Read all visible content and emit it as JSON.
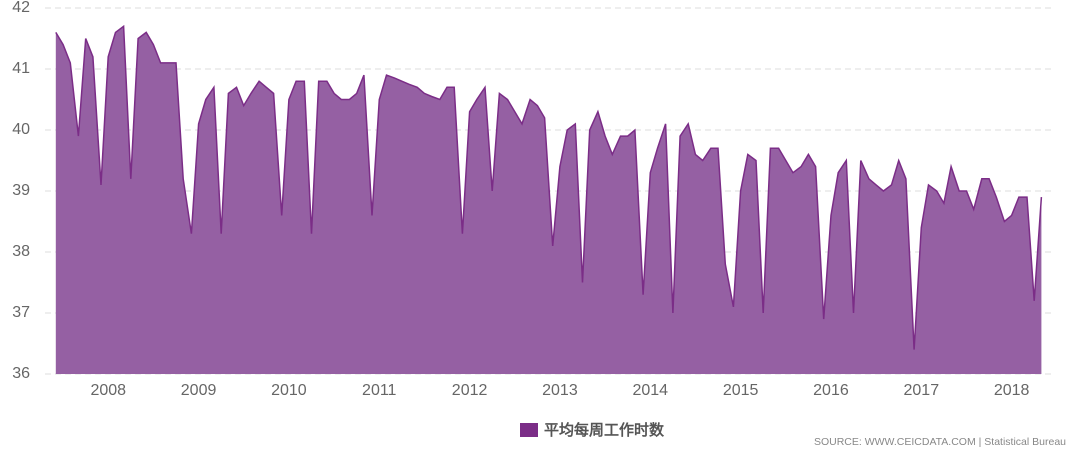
{
  "chart_data": {
    "type": "area",
    "x": [
      2007.42,
      2007.5,
      2007.58,
      2007.67,
      2007.75,
      2007.83,
      2007.92,
      2008.0,
      2008.08,
      2008.17,
      2008.25,
      2008.33,
      2008.42,
      2008.5,
      2008.58,
      2008.67,
      2008.75,
      2008.83,
      2008.92,
      2009.0,
      2009.08,
      2009.17,
      2009.25,
      2009.33,
      2009.42,
      2009.5,
      2009.58,
      2009.67,
      2009.75,
      2009.83,
      2009.92,
      2010.0,
      2010.08,
      2010.17,
      2010.25,
      2010.33,
      2010.42,
      2010.5,
      2010.58,
      2010.67,
      2010.75,
      2010.83,
      2010.92,
      2011.0,
      2011.08,
      2011.17,
      2011.25,
      2011.33,
      2011.42,
      2011.5,
      2011.58,
      2011.67,
      2011.75,
      2011.83,
      2011.92,
      2012.0,
      2012.08,
      2012.17,
      2012.25,
      2012.33,
      2012.42,
      2012.5,
      2012.58,
      2012.67,
      2012.75,
      2012.83,
      2012.92,
      2013.0,
      2013.08,
      2013.17,
      2013.25,
      2013.33,
      2013.42,
      2013.5,
      2013.58,
      2013.67,
      2013.75,
      2013.83,
      2013.92,
      2014.0,
      2014.08,
      2014.17,
      2014.25,
      2014.33,
      2014.42,
      2014.5,
      2014.58,
      2014.67,
      2014.75,
      2014.83,
      2014.92,
      2015.0,
      2015.08,
      2015.17,
      2015.25,
      2015.33,
      2015.42,
      2015.5,
      2015.58,
      2015.67,
      2015.75,
      2015.83,
      2015.92,
      2016.0,
      2016.08,
      2016.17,
      2016.25,
      2016.33,
      2016.42,
      2016.5,
      2016.58,
      2016.67,
      2016.75,
      2016.83,
      2016.92,
      2017.0,
      2017.08,
      2017.17,
      2017.25,
      2017.33,
      2017.42,
      2017.5,
      2017.58,
      2017.67,
      2017.75,
      2017.83,
      2017.92,
      2018.0,
      2018.08,
      2018.17,
      2018.25,
      2018.33
    ],
    "series": [
      {
        "name": "平均每周工作时数",
        "color": "#7b2d87",
        "fill": "#9560a3",
        "values": [
          41.6,
          41.4,
          41.1,
          39.9,
          41.5,
          41.2,
          39.1,
          41.2,
          41.6,
          41.7,
          39.2,
          41.5,
          41.6,
          41.4,
          41.1,
          41.1,
          41.1,
          39.2,
          38.3,
          40.1,
          40.5,
          40.7,
          38.3,
          40.6,
          40.7,
          40.4,
          40.6,
          40.8,
          40.7,
          40.6,
          38.6,
          40.5,
          40.8,
          40.8,
          38.3,
          40.8,
          40.8,
          40.6,
          40.5,
          40.5,
          40.6,
          40.9,
          38.6,
          40.5,
          40.9,
          40.85,
          40.8,
          40.75,
          40.7,
          40.6,
          40.55,
          40.5,
          40.7,
          40.7,
          38.3,
          40.3,
          40.5,
          40.7,
          39.0,
          40.6,
          40.5,
          40.3,
          40.1,
          40.5,
          40.4,
          40.2,
          38.1,
          39.4,
          40.0,
          40.1,
          37.5,
          40.0,
          40.3,
          39.9,
          39.6,
          39.9,
          39.9,
          40.0,
          37.3,
          39.3,
          39.7,
          40.1,
          37.0,
          39.9,
          40.1,
          39.6,
          39.5,
          39.7,
          39.7,
          37.8,
          37.1,
          39.0,
          39.6,
          39.5,
          37.0,
          39.7,
          39.7,
          39.5,
          39.3,
          39.4,
          39.6,
          39.4,
          36.9,
          38.6,
          39.3,
          39.5,
          37.0,
          39.5,
          39.2,
          39.1,
          39.0,
          39.1,
          39.5,
          39.2,
          36.4,
          38.4,
          39.1,
          39.0,
          38.8,
          39.4,
          39.0,
          39.0,
          38.7,
          39.2,
          39.2,
          38.9,
          38.5,
          38.6,
          38.9,
          38.9,
          37.2,
          38.9
        ]
      }
    ],
    "xlim": [
      2007.3,
      2018.48
    ],
    "xticks": [
      {
        "value": 2008,
        "label": "2008"
      },
      {
        "value": 2009,
        "label": "2009"
      },
      {
        "value": 2010,
        "label": "2010"
      },
      {
        "value": 2011,
        "label": "2011"
      },
      {
        "value": 2012,
        "label": "2012"
      },
      {
        "value": 2013,
        "label": "2013"
      },
      {
        "value": 2014,
        "label": "2014"
      },
      {
        "value": 2015,
        "label": "2015"
      },
      {
        "value": 2016,
        "label": "2016"
      },
      {
        "value": 2017,
        "label": "2017"
      },
      {
        "value": 2018,
        "label": "2018"
      }
    ],
    "ylim": [
      36,
      42
    ],
    "yticks": [
      36,
      37,
      38,
      39,
      40,
      41,
      42
    ],
    "grid": true,
    "source": "SOURCE: WWW.CEICDATA.COM | Statistical Bureau"
  }
}
